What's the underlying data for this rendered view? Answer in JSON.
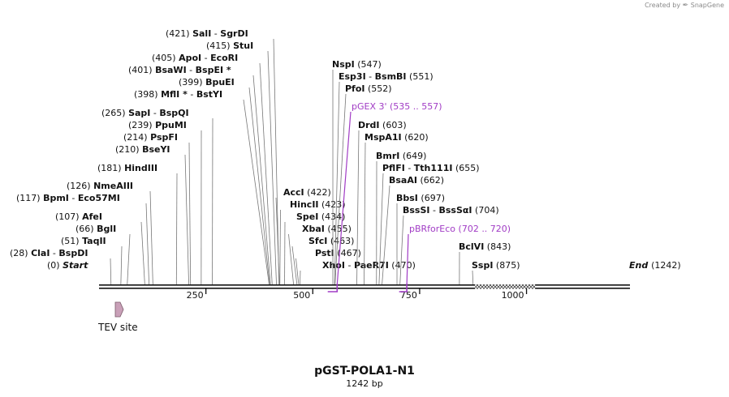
{
  "credit": {
    "prefix": "Created by",
    "brand": "SnapGene"
  },
  "title": "pGST-POLA1-N1",
  "length_label": "1242 bp",
  "total_bp": 1242,
  "ticks": [
    {
      "bp": 250,
      "label": "250"
    },
    {
      "bp": 500,
      "label": "500"
    },
    {
      "bp": 750,
      "label": "750"
    },
    {
      "bp": 1000,
      "label": "1000"
    }
  ],
  "solid_ranges": [
    [
      0,
      880
    ],
    [
      1020,
      1242
    ]
  ],
  "hatched_ranges": [
    [
      880,
      1020
    ]
  ],
  "ends": [
    {
      "pos": "(0)",
      "name": "Start",
      "bp": 0
    },
    {
      "pos": "(1242)",
      "name": "End",
      "bp": 1242
    }
  ],
  "left_sites": [
    {
      "pos": "(28)",
      "names": [
        "ClaI",
        "BspDI"
      ],
      "bp": 28
    },
    {
      "pos": "(51)",
      "names": [
        "TaqII"
      ],
      "bp": 51
    },
    {
      "pos": "(66)",
      "names": [
        "BglI"
      ],
      "bp": 66
    },
    {
      "pos": "(107)",
      "names": [
        "AfeI"
      ],
      "bp": 107
    },
    {
      "pos": "(117)",
      "names": [
        "BpmI",
        "Eco57MI"
      ],
      "bp": 117
    },
    {
      "pos": "(126)",
      "names": [
        "NmeAIII"
      ],
      "bp": 126
    },
    {
      "pos": "(181)",
      "names": [
        "HindIII"
      ],
      "bp": 181
    },
    {
      "pos": "(210)",
      "names": [
        "BseYI"
      ],
      "bp": 210
    },
    {
      "pos": "(214)",
      "names": [
        "PspFI"
      ],
      "bp": 214
    },
    {
      "pos": "(239)",
      "names": [
        "PpuMI"
      ],
      "bp": 239
    },
    {
      "pos": "(265)",
      "names": [
        "SapI",
        "BspQI"
      ],
      "bp": 265
    },
    {
      "pos": "(398)",
      "names": [
        "MflI",
        "BstYI"
      ],
      "bp": 398,
      "star": true
    },
    {
      "pos": "(399)",
      "names": [
        "BpuEI"
      ],
      "bp": 399
    },
    {
      "pos": "(401)",
      "names": [
        "BsaWI",
        "BspEI"
      ],
      "bp": 401,
      "star_end": true
    },
    {
      "pos": "(405)",
      "names": [
        "ApoI",
        "EcoRI"
      ],
      "bp": 405
    },
    {
      "pos": "(415)",
      "names": [
        "StuI"
      ],
      "bp": 415
    },
    {
      "pos": "(421)",
      "names": [
        "SalI",
        "SgrDI"
      ],
      "bp": 421
    }
  ],
  "mid_sites": [
    {
      "pos": "(422)",
      "names": [
        "AccI"
      ],
      "bp": 422
    },
    {
      "pos": "(423)",
      "names": [
        "HincII"
      ],
      "bp": 423
    },
    {
      "pos": "(434)",
      "names": [
        "SpeI"
      ],
      "bp": 434
    },
    {
      "pos": "(455)",
      "names": [
        "XbaI"
      ],
      "bp": 455
    },
    {
      "pos": "(463)",
      "names": [
        "SfcI"
      ],
      "bp": 463
    },
    {
      "pos": "(467)",
      "names": [
        "PstI"
      ],
      "bp": 467
    },
    {
      "pos": "(470)",
      "names": [
        "XhoI",
        "PaeR7I"
      ],
      "bp": 470
    }
  ],
  "right_sites": [
    {
      "pos": "(547)",
      "names": [
        "NspI"
      ],
      "bp": 547
    },
    {
      "pos": "(551)",
      "names": [
        "Esp3I",
        "BsmBI"
      ],
      "bp": 551
    },
    {
      "pos": "(552)",
      "names": [
        "PfoI"
      ],
      "bp": 552
    },
    {
      "pos": "(603)",
      "names": [
        "DrdI"
      ],
      "bp": 603
    },
    {
      "pos": "(620)",
      "names": [
        "MspA1I"
      ],
      "bp": 620
    },
    {
      "pos": "(649)",
      "names": [
        "BmrI"
      ],
      "bp": 649
    },
    {
      "pos": "(655)",
      "names": [
        "PflFI",
        "Tth111I"
      ],
      "bp": 655
    },
    {
      "pos": "(662)",
      "names": [
        "BsaAI"
      ],
      "bp": 662
    },
    {
      "pos": "(697)",
      "names": [
        "BbsI"
      ],
      "bp": 697
    },
    {
      "pos": "(704)",
      "names": [
        "BssSI",
        "BssSαI"
      ],
      "bp": 704
    },
    {
      "pos": "(843)",
      "names": [
        "BclVI"
      ],
      "bp": 843
    },
    {
      "pos": "(875)",
      "names": [
        "SspI"
      ],
      "bp": 875
    }
  ],
  "primers": [
    {
      "name": "pGEX 3'",
      "range": "(535 .. 557)",
      "start": 535,
      "end": 557
    },
    {
      "name": "pBRforEco",
      "range": "(702 .. 720)",
      "start": 702,
      "end": 720
    }
  ],
  "features": [
    {
      "name": "TEV site",
      "start": 0,
      "end": 20
    }
  ],
  "colors": {
    "ink": "#111111",
    "line": "#777777",
    "primer": "#a13cc5",
    "feature": "#c9a0b8",
    "feature_stroke": "#7a5a6a"
  }
}
